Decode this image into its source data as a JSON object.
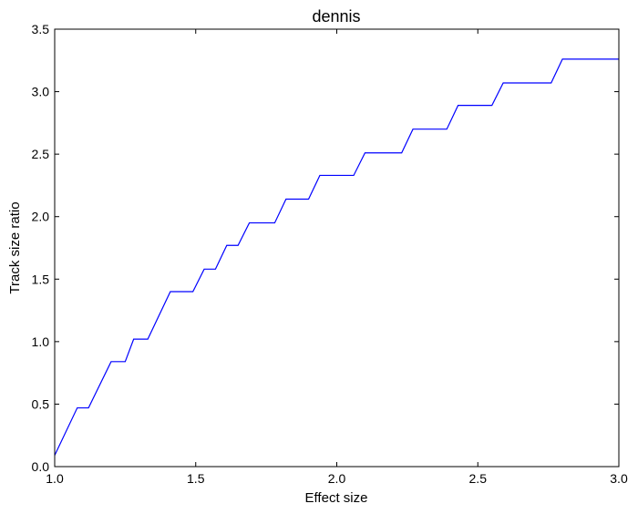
{
  "chart_data": {
    "type": "line",
    "title": "dennis",
    "xlabel": "Effect size",
    "ylabel": "Track size ratio",
    "xlim": [
      1.0,
      3.0
    ],
    "ylim": [
      0.0,
      3.5
    ],
    "xticks": [
      "1.0",
      "1.5",
      "2.0",
      "2.5",
      "3.0"
    ],
    "yticks": [
      "0.0",
      "0.5",
      "1.0",
      "1.5",
      "2.0",
      "2.5",
      "3.0",
      "3.5"
    ],
    "grid": false,
    "line_color": "#0000ff",
    "series": [
      {
        "x": [
          1.0,
          1.08,
          1.12,
          1.2,
          1.25,
          1.28,
          1.33,
          1.41,
          1.49,
          1.53,
          1.57,
          1.61,
          1.65,
          1.69,
          1.78,
          1.82,
          1.9,
          1.94,
          2.06,
          2.1,
          2.23,
          2.27,
          2.39,
          2.43,
          2.55,
          2.59,
          2.76,
          2.8,
          3.0
        ],
        "y": [
          0.09,
          0.47,
          0.47,
          0.84,
          0.84,
          1.02,
          1.02,
          1.4,
          1.4,
          1.58,
          1.58,
          1.77,
          1.77,
          1.95,
          1.95,
          2.14,
          2.14,
          2.33,
          2.33,
          2.51,
          2.51,
          2.7,
          2.7,
          2.89,
          2.89,
          3.07,
          3.07,
          3.26,
          3.26
        ]
      }
    ]
  }
}
